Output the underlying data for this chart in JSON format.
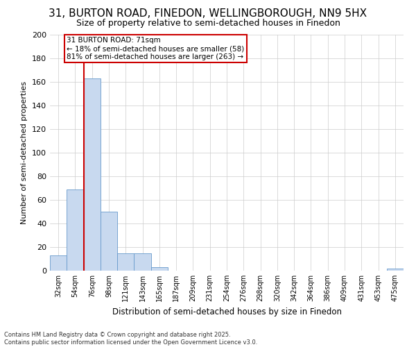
{
  "title": "31, BURTON ROAD, FINEDON, WELLINGBOROUGH, NN9 5HX",
  "subtitle": "Size of property relative to semi-detached houses in Finedon",
  "xlabel": "Distribution of semi-detached houses by size in Finedon",
  "ylabel": "Number of semi-detached properties",
  "footer_line1": "Contains HM Land Registry data © Crown copyright and database right 2025.",
  "footer_line2": "Contains public sector information licensed under the Open Government Licence v3.0.",
  "categories": [
    "32sqm",
    "54sqm",
    "76sqm",
    "98sqm",
    "121sqm",
    "143sqm",
    "165sqm",
    "187sqm",
    "209sqm",
    "231sqm",
    "254sqm",
    "276sqm",
    "298sqm",
    "320sqm",
    "342sqm",
    "364sqm",
    "386sqm",
    "409sqm",
    "431sqm",
    "453sqm",
    "475sqm"
  ],
  "values": [
    13,
    69,
    163,
    50,
    15,
    15,
    3,
    0,
    0,
    0,
    0,
    0,
    0,
    0,
    0,
    0,
    0,
    0,
    0,
    0,
    2
  ],
  "bar_color": "#c8d9ef",
  "bar_edge_color": "#6699cc",
  "property_line_x": 2,
  "property_label": "31 BURTON ROAD: 71sqm",
  "pct_smaller": 18,
  "count_smaller": 58,
  "pct_larger": 81,
  "count_larger": 263,
  "property_line_color": "#cc0000",
  "annotation_box_color": "#cc0000",
  "ylim": [
    0,
    200
  ],
  "yticks": [
    0,
    20,
    40,
    60,
    80,
    100,
    120,
    140,
    160,
    180,
    200
  ],
  "background_color": "#ffffff",
  "grid_color": "#cccccc",
  "title_fontsize": 11,
  "subtitle_fontsize": 9
}
